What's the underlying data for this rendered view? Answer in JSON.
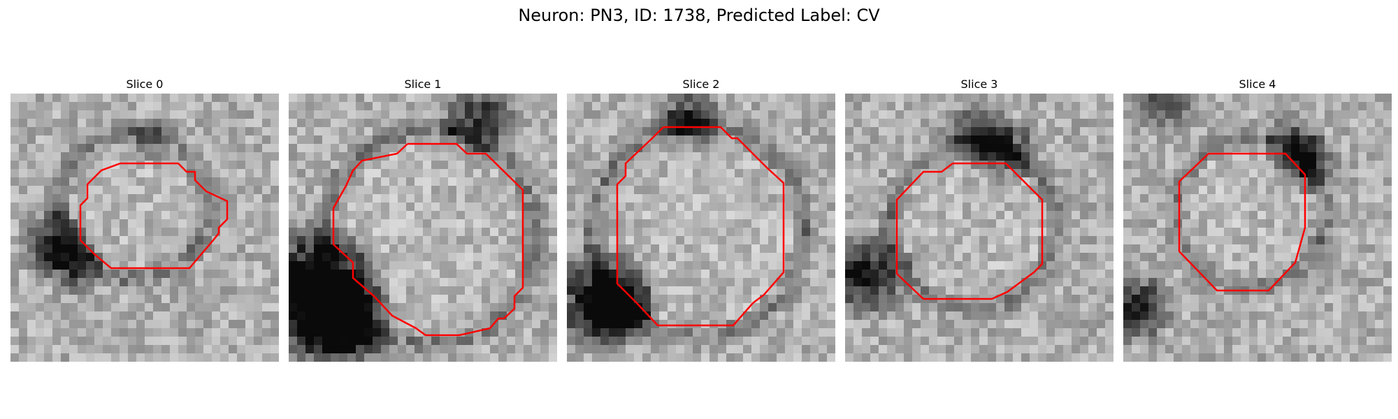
{
  "figure": {
    "title": "Neuron: PN3, ID: 1738, Predicted Label: CV"
  },
  "slices": [
    {
      "title": "Slice 0"
    },
    {
      "title": "Slice 1"
    },
    {
      "title": "Slice 2"
    },
    {
      "title": "Slice 3"
    },
    {
      "title": "Slice 4"
    }
  ],
  "colors": {
    "contour": "#ff0000",
    "background": "#ffffff"
  },
  "icons": {
    "image": "grayscale-em-patch",
    "overlay": "red-cell-contour"
  }
}
